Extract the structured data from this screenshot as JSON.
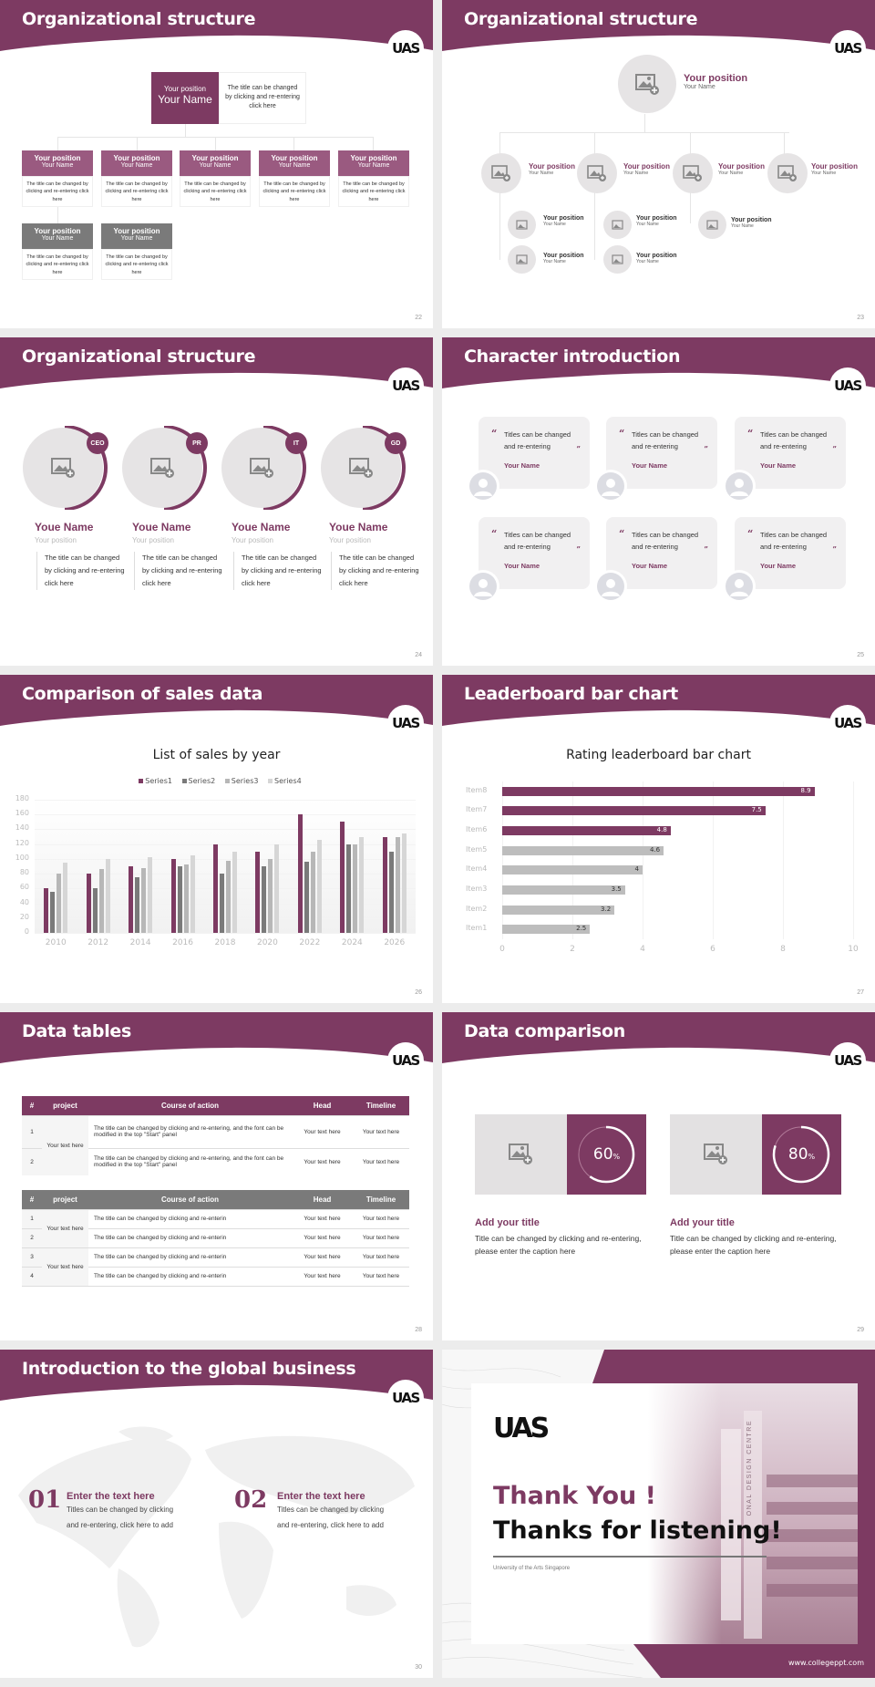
{
  "theme": {
    "accent": "#7d3a62",
    "gray_dark": "#7a7a7a",
    "gray_mid": "#b7b7b7",
    "gray_light": "#d6d6d6",
    "placeholder_bg": "#e6e4e5"
  },
  "logo": "UAS",
  "slides": [
    {
      "title": "Organizational structure",
      "page": "22",
      "top": {
        "position": "Your position",
        "name": "Your Name",
        "desc": "The title can be changed by clicking and re-entering click here"
      },
      "boxes": [
        {
          "position": "Your position",
          "name": "Your Name",
          "desc": "The title can be changed by clicking and re-entering click here",
          "color": "purple"
        },
        {
          "position": "Your position",
          "name": "Your Name",
          "desc": "The title can be changed by clicking and re-entering click here",
          "color": "purple"
        },
        {
          "position": "Your position",
          "name": "Your Name",
          "desc": "The title can be changed by clicking and re-entering click here",
          "color": "purple"
        },
        {
          "position": "Your position",
          "name": "Your Name",
          "desc": "The title can be changed by clicking and re-entering click here",
          "color": "purple"
        },
        {
          "position": "Your position",
          "name": "Your Name",
          "desc": "The title can be changed by clicking and re-entering click here",
          "color": "purple"
        },
        {
          "position": "Your position",
          "name": "Your Name",
          "desc": "The title can be changed by clicking and re-entering click here",
          "color": "gray"
        },
        {
          "position": "Your position",
          "name": "Your Name",
          "desc": "The title can be changed by clicking and re-entering click here",
          "color": "gray"
        }
      ]
    },
    {
      "title": "Organizational structure",
      "page": "23",
      "top": {
        "position": "Your position",
        "name": "Your Name"
      },
      "level2": [
        {
          "position": "Your position",
          "name": "Your Name"
        },
        {
          "position": "Your position",
          "name": "Your Name"
        },
        {
          "position": "Your position",
          "name": "Your Name"
        },
        {
          "position": "Your position",
          "name": "Your Name"
        }
      ],
      "level3": [
        {
          "position": "Your position",
          "name": "Your Name"
        },
        {
          "position": "Your position",
          "name": "Your Name"
        },
        {
          "position": "Your position",
          "name": "Your Name"
        },
        {
          "position": "Your position",
          "name": "Your Name"
        },
        {
          "position": "Your position",
          "name": "Your Name"
        }
      ]
    },
    {
      "title": "Organizational structure",
      "page": "24",
      "members": [
        {
          "badge": "CEO",
          "name": "Youe Name",
          "position": "Your position",
          "desc": "The title can be changed by clicking and re-entering click here"
        },
        {
          "badge": "PR",
          "name": "Youe Name",
          "position": "Your position",
          "desc": "The title can be changed by clicking and re-entering click here"
        },
        {
          "badge": "IT",
          "name": "Youe Name",
          "position": "Your position",
          "desc": "The title can be changed by clicking and re-entering click here"
        },
        {
          "badge": "GD",
          "name": "Youe Name",
          "position": "Your position",
          "desc": "The title can be changed by clicking and re-entering click here"
        }
      ]
    },
    {
      "title": "Character introduction",
      "page": "25",
      "cards": [
        {
          "quote": "Titles can be changed and re-entering",
          "name": "Your Name"
        },
        {
          "quote": "Titles can be changed and re-entering",
          "name": "Your Name"
        },
        {
          "quote": "Titles can be changed and re-entering",
          "name": "Your Name"
        },
        {
          "quote": "Titles can be changed and re-entering",
          "name": "Your Name"
        },
        {
          "quote": "Titles can be changed and re-entering",
          "name": "Your Name"
        },
        {
          "quote": "Titles can be changed and re-entering",
          "name": "Your Name"
        }
      ]
    },
    {
      "title": "Comparison of sales data",
      "page": "26"
    },
    {
      "title": "Leaderboard bar chart",
      "page": "27"
    },
    {
      "title": "Data tables",
      "page": "28",
      "headers": [
        "#",
        "project",
        "Course of action",
        "Head",
        "Timeline"
      ],
      "table1": {
        "rows": [
          {
            "idx": "1",
            "course": "The title can be changed by clicking and re-entering, and the font can be modified in the top \"Start\" panel",
            "head": "Your text here",
            "timeline": "Your text here"
          },
          {
            "idx": "2",
            "course": "The title can be changed by clicking and re-entering, and the font can be modified in the top \"Start\" panel",
            "head": "Your text here",
            "timeline": "Your text here"
          }
        ],
        "project": "Your text here"
      },
      "table2": {
        "rows": [
          {
            "idx": "1",
            "course": "The title can be changed by clicking and re-enterin",
            "head": "Your text here",
            "timeline": "Your text here"
          },
          {
            "idx": "2",
            "course": "The title can be changed by clicking and re-enterin",
            "head": "Your text here",
            "timeline": "Your text here"
          },
          {
            "idx": "3",
            "course": "The title can be changed by clicking and re-enterin",
            "head": "Your text here",
            "timeline": "Your text here"
          },
          {
            "idx": "4",
            "course": "The title can be changed by clicking and re-enterin",
            "head": "Your text here",
            "timeline": "Your text here"
          }
        ],
        "project_a": "Your text here",
        "project_b": "Your text here"
      }
    },
    {
      "title": "Data comparison",
      "page": "29",
      "items": [
        {
          "value": "60",
          "unit": "%",
          "title": "Add your title",
          "text": "Title can be changed by clicking and re-entering, please enter the caption here"
        },
        {
          "value": "80",
          "unit": "%",
          "title": "Add your title",
          "text": "Title can be changed by clicking and re-entering, please enter the caption here"
        }
      ]
    },
    {
      "title": "Introduction to the global business",
      "page": "30",
      "items": [
        {
          "num": "01",
          "title": "Enter the text here",
          "text1": "Titles can be changed by clicking",
          "text2": "and re-entering, click here to add"
        },
        {
          "num": "02",
          "title": "Enter the text here",
          "text1": "Titles can be changed by clicking",
          "text2": "and re-entering, click here to add"
        }
      ]
    },
    {
      "line1": "Thank You !",
      "line2": "Thanks for listening!",
      "subtitle": "University of the Arts Singapore",
      "building_sign": "ONAL DESIGN CENTRE",
      "url": "www.collegeppt.com"
    }
  ],
  "chart_data": [
    {
      "type": "bar",
      "title": "List of sales by year",
      "categories": [
        "2010",
        "2012",
        "2014",
        "2016",
        "2018",
        "2020",
        "2022",
        "2024",
        "2026"
      ],
      "series": [
        {
          "name": "Series1",
          "color": "#7d3a62",
          "values": [
            60,
            80,
            90,
            100,
            120,
            110,
            160,
            150,
            130
          ]
        },
        {
          "name": "Series2",
          "color": "#7a7a7a",
          "values": [
            55,
            60,
            75,
            90,
            80,
            90,
            96,
            120,
            110
          ]
        },
        {
          "name": "Series3",
          "color": "#b7b7b7",
          "values": [
            80,
            86,
            88,
            92,
            98,
            100,
            110,
            120,
            130
          ]
        },
        {
          "name": "Series4",
          "color": "#d6d6d6",
          "values": [
            95,
            100,
            102,
            105,
            110,
            120,
            126,
            130,
            135
          ]
        }
      ],
      "yticks": [
        "0",
        "20",
        "40",
        "60",
        "80",
        "100",
        "120",
        "140",
        "160",
        "180"
      ],
      "ylim": [
        0,
        180
      ],
      "legend_position": "top",
      "grid": true
    },
    {
      "type": "bar",
      "orientation": "horizontal",
      "title": "Rating leaderboard bar chart",
      "categories": [
        "Item8",
        "Item7",
        "Item6",
        "Item5",
        "Item4",
        "Item3",
        "Item2",
        "Item1"
      ],
      "values": [
        8.9,
        7.5,
        4.8,
        4.6,
        4,
        3.5,
        3.2,
        2.5
      ],
      "labels": [
        "8.9",
        "7.5",
        "4.8",
        "4.6",
        "4",
        "3.5",
        "3.2",
        "2.5"
      ],
      "highlight_top": 3,
      "xticks": [
        "0",
        "2",
        "4",
        "6",
        "8",
        "10"
      ],
      "xlim": [
        0,
        10
      ],
      "grid": true
    }
  ]
}
